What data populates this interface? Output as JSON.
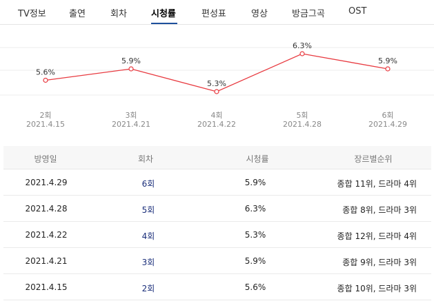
{
  "tabs": [
    {
      "label": "TV정보"
    },
    {
      "label": "출연"
    },
    {
      "label": "회차"
    },
    {
      "label": "시청률",
      "active": true
    },
    {
      "label": "편성표"
    },
    {
      "label": "영상"
    },
    {
      "label": "방금그곡"
    },
    {
      "label": "OST"
    }
  ],
  "chart_data": {
    "type": "line",
    "series_color": "#e8393f",
    "grid": true,
    "x": [
      {
        "episode": "2회",
        "date": "2021.4.15"
      },
      {
        "episode": "3회",
        "date": "2021.4.21"
      },
      {
        "episode": "4회",
        "date": "2021.4.22"
      },
      {
        "episode": "5회",
        "date": "2021.4.28"
      },
      {
        "episode": "6회",
        "date": "2021.4.29"
      }
    ],
    "values": [
      5.6,
      5.9,
      5.3,
      6.3,
      5.9
    ],
    "value_labels": [
      "5.6%",
      "5.9%",
      "5.3%",
      "6.3%",
      "5.9%"
    ]
  },
  "table": {
    "headers": [
      "방영일",
      "회차",
      "시청률",
      "장르별순위"
    ],
    "rows": [
      {
        "date": "2021.4.29",
        "episode": "6회",
        "rating": "5.9%",
        "rank": "종합 11위, 드라마 4위"
      },
      {
        "date": "2021.4.28",
        "episode": "5회",
        "rating": "6.3%",
        "rank": "종합 8위, 드라마 3위"
      },
      {
        "date": "2021.4.22",
        "episode": "4회",
        "rating": "5.3%",
        "rank": "종합 12위, 드라마 4위"
      },
      {
        "date": "2021.4.21",
        "episode": "3회",
        "rating": "5.9%",
        "rank": "종합 9위, 드라마 3위"
      },
      {
        "date": "2021.4.15",
        "episode": "2회",
        "rating": "5.6%",
        "rank": "종합 10위, 드라마 3위"
      }
    ]
  }
}
